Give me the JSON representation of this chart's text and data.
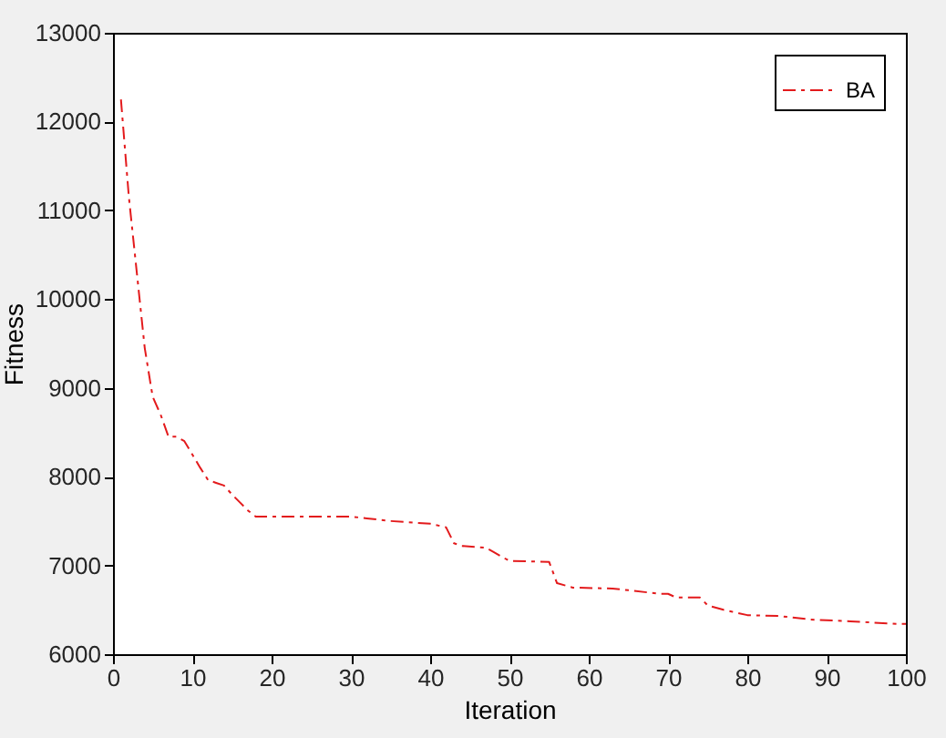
{
  "chart_data": {
    "type": "line",
    "xlabel": "Iteration",
    "ylabel": "Fitness",
    "x": [
      1,
      2,
      3,
      4,
      5,
      6,
      7,
      8,
      9,
      10,
      11,
      12,
      13,
      14,
      15,
      16,
      17,
      18,
      30,
      32,
      35,
      40,
      42,
      43,
      44,
      47,
      48,
      50,
      55,
      56,
      58,
      63,
      65,
      69,
      70,
      71,
      74,
      75,
      77,
      78,
      80,
      84,
      88,
      93,
      99,
      100
    ],
    "series": [
      {
        "name": "BA",
        "color": "#e31a1c",
        "values": [
          12250,
          11150,
          10300,
          9450,
          8900,
          8700,
          8450,
          8450,
          8400,
          8250,
          8100,
          7960,
          7930,
          7900,
          7800,
          7710,
          7620,
          7550,
          7550,
          7530,
          7500,
          7470,
          7430,
          7250,
          7220,
          7200,
          7150,
          7050,
          7040,
          6800,
          6750,
          6740,
          6720,
          6680,
          6680,
          6640,
          6640,
          6550,
          6500,
          6480,
          6440,
          6430,
          6390,
          6370,
          6340,
          6340
        ]
      }
    ],
    "xlim": [
      0,
      100
    ],
    "xticks": [
      0,
      10,
      20,
      30,
      40,
      50,
      60,
      70,
      80,
      90,
      100
    ],
    "ylim": [
      6000,
      13000
    ],
    "yticks": [
      6000,
      7000,
      8000,
      9000,
      10000,
      11000,
      12000,
      13000
    ],
    "grid": false,
    "legend": "top right",
    "line_style": "dashdot"
  }
}
